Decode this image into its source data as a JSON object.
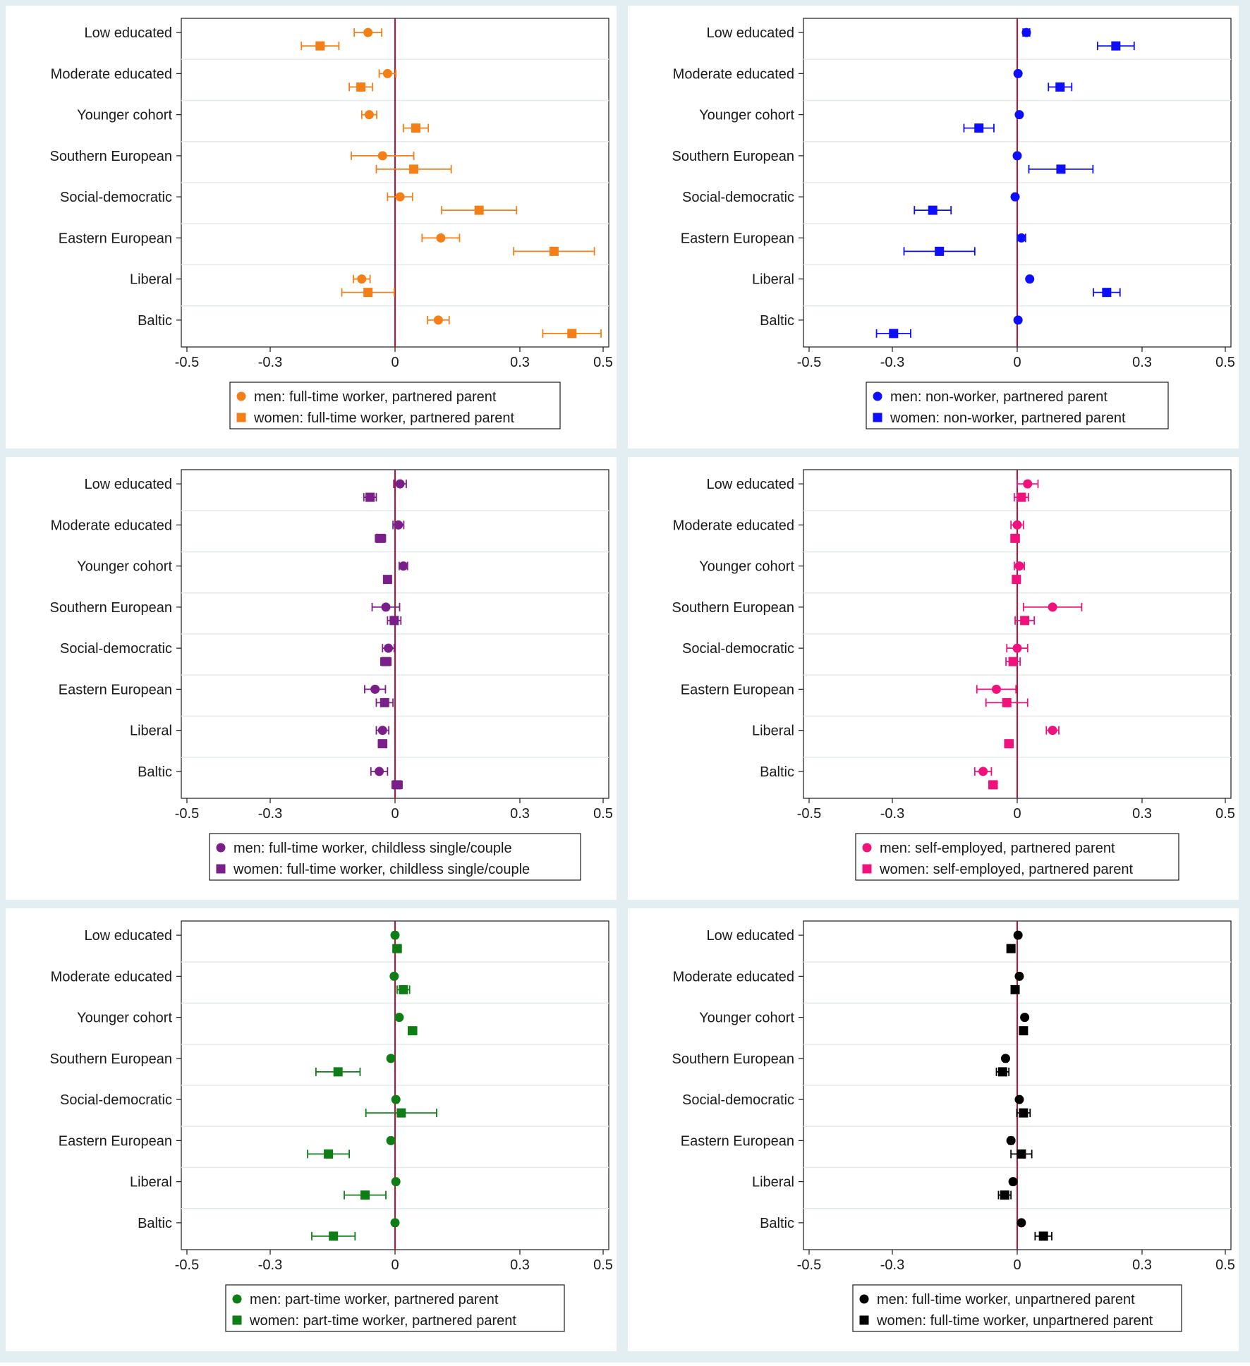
{
  "figure": {
    "background": "#e3eef3"
  },
  "categories": [
    "Low educated",
    "Moderate educated",
    "Younger cohort",
    "Southern European",
    "Social-democratic",
    "Eastern European",
    "Liberal",
    "Baltic"
  ],
  "chart_data": [
    {
      "type": "scatter",
      "style": "coefficient plot with 95% CI",
      "color": "#f57f17",
      "xlim": [
        -0.5,
        0.5
      ],
      "xticks": [
        "-0.5",
        "-0.3",
        "0",
        "0.3",
        "0.5"
      ],
      "series": [
        {
          "name": "men: full-time worker, partnered parent",
          "marker": "circle",
          "values": [
            -0.065,
            -0.018,
            -0.062,
            -0.03,
            0.012,
            0.11,
            -0.08,
            0.104
          ],
          "ci_low": [
            -0.098,
            -0.038,
            -0.08,
            -0.105,
            -0.018,
            0.065,
            -0.1,
            0.078
          ],
          "ci_high": [
            -0.032,
            0.002,
            -0.044,
            0.045,
            0.042,
            0.155,
            -0.06,
            0.13
          ]
        },
        {
          "name": "women: full-time worker, partnered parent",
          "marker": "square",
          "values": [
            -0.18,
            -0.082,
            0.05,
            0.045,
            0.202,
            0.382,
            -0.065,
            0.425
          ],
          "ci_low": [
            -0.225,
            -0.11,
            0.02,
            -0.045,
            0.112,
            0.285,
            -0.128,
            0.355
          ],
          "ci_high": [
            -0.135,
            -0.054,
            0.08,
            0.135,
            0.292,
            0.479,
            -0.002,
            0.495
          ]
        }
      ]
    },
    {
      "type": "scatter",
      "style": "coefficient plot with 95% CI",
      "color": "#0d0dff",
      "xlim": [
        -0.5,
        0.5
      ],
      "xticks": [
        "-0.5",
        "-0.3",
        "0",
        "0.3",
        "0.5"
      ],
      "series": [
        {
          "name": "men: non-worker, partnered parent",
          "marker": "circle",
          "values": [
            0.022,
            0.002,
            0.005,
            0.0,
            -0.005,
            0.01,
            0.03,
            0.002
          ],
          "ci_low": [
            0.014,
            -0.002,
            0.001,
            -0.004,
            -0.009,
            0.0,
            0.026,
            -0.002
          ],
          "ci_high": [
            0.03,
            0.006,
            0.009,
            0.004,
            -0.001,
            0.02,
            0.034,
            0.006
          ]
        },
        {
          "name": "women: non-worker, partnered parent",
          "marker": "square",
          "values": [
            0.237,
            0.103,
            -0.092,
            0.105,
            -0.203,
            -0.187,
            0.215,
            -0.297
          ],
          "ci_low": [
            0.193,
            0.075,
            -0.128,
            0.028,
            -0.247,
            -0.272,
            0.183,
            -0.338
          ],
          "ci_high": [
            0.281,
            0.131,
            -0.056,
            0.182,
            -0.159,
            -0.102,
            0.247,
            -0.256
          ]
        }
      ]
    },
    {
      "type": "scatter",
      "style": "coefficient plot with 95% CI",
      "color": "#7a1e8a",
      "xlim": [
        -0.5,
        0.5
      ],
      "xticks": [
        "-0.5",
        "-0.3",
        "0",
        "0.3",
        "0.5"
      ],
      "series": [
        {
          "name": "men: full-time worker, childless single/couple",
          "marker": "circle",
          "values": [
            0.012,
            0.008,
            0.02,
            -0.022,
            -0.016,
            -0.048,
            -0.03,
            -0.038
          ],
          "ci_low": [
            -0.003,
            -0.005,
            0.01,
            -0.055,
            -0.03,
            -0.073,
            -0.045,
            -0.058
          ],
          "ci_high": [
            0.027,
            0.021,
            0.03,
            0.011,
            -0.002,
            -0.023,
            -0.015,
            -0.018
          ]
        },
        {
          "name": "women: full-time worker, childless single/couple",
          "marker": "square",
          "values": [
            -0.06,
            -0.035,
            -0.018,
            -0.002,
            -0.022,
            -0.025,
            -0.03,
            0.005
          ],
          "ci_low": [
            -0.075,
            -0.047,
            -0.026,
            -0.018,
            -0.034,
            -0.045,
            -0.04,
            -0.007
          ],
          "ci_high": [
            -0.045,
            -0.023,
            -0.01,
            0.014,
            -0.01,
            -0.005,
            -0.02,
            0.017
          ]
        }
      ]
    },
    {
      "type": "scatter",
      "style": "coefficient plot with 95% CI",
      "color": "#f0127c",
      "xlim": [
        -0.5,
        0.5
      ],
      "xticks": [
        "-0.5",
        "-0.3",
        "0",
        "0.3",
        "0.5"
      ],
      "series": [
        {
          "name": "men: self-employed, partnered parent",
          "marker": "circle",
          "values": [
            0.025,
            0.0,
            0.005,
            0.085,
            0.0,
            -0.05,
            0.085,
            -0.082
          ],
          "ci_low": [
            0.0,
            -0.015,
            -0.007,
            0.015,
            -0.025,
            -0.097,
            0.07,
            -0.102
          ],
          "ci_high": [
            0.05,
            0.015,
            0.017,
            0.155,
            0.025,
            -0.003,
            0.1,
            -0.062
          ]
        },
        {
          "name": "women: self-employed, partnered parent",
          "marker": "square",
          "values": [
            0.01,
            -0.005,
            -0.002,
            0.018,
            -0.01,
            -0.025,
            -0.02,
            -0.058
          ],
          "ci_low": [
            -0.007,
            -0.015,
            -0.01,
            -0.005,
            -0.027,
            -0.075,
            -0.03,
            -0.068
          ],
          "ci_high": [
            0.027,
            0.005,
            0.006,
            0.041,
            0.007,
            0.025,
            -0.01,
            -0.048
          ]
        }
      ]
    },
    {
      "type": "scatter",
      "style": "coefficient plot with 95% CI",
      "color": "#0e7d16",
      "xlim": [
        -0.5,
        0.5
      ],
      "xticks": [
        "-0.5",
        "-0.3",
        "0",
        "0.3",
        "0.5"
      ],
      "series": [
        {
          "name": "men: part-time worker, partnered parent",
          "marker": "circle",
          "values": [
            0.0,
            -0.002,
            0.01,
            -0.01,
            0.002,
            -0.01,
            0.002,
            0.0
          ],
          "ci_low": [
            -0.004,
            -0.006,
            0.006,
            -0.014,
            -0.002,
            -0.014,
            -0.002,
            -0.004
          ],
          "ci_high": [
            0.004,
            0.002,
            0.014,
            -0.006,
            0.006,
            -0.006,
            0.006,
            0.004
          ]
        },
        {
          "name": "women: part-time worker, partnered parent",
          "marker": "square",
          "values": [
            0.005,
            0.02,
            0.042,
            -0.137,
            0.015,
            -0.16,
            -0.072,
            -0.148
          ],
          "ci_low": [
            -0.005,
            0.005,
            0.032,
            -0.19,
            -0.07,
            -0.21,
            -0.122,
            -0.2
          ],
          "ci_high": [
            0.015,
            0.035,
            0.052,
            -0.084,
            0.1,
            -0.11,
            -0.022,
            -0.096
          ]
        }
      ]
    },
    {
      "type": "scatter",
      "style": "coefficient plot with 95% CI",
      "color": "#000000",
      "xlim": [
        -0.5,
        0.5
      ],
      "xticks": [
        "-0.5",
        "-0.3",
        "0",
        "0.3",
        "0.5"
      ],
      "series": [
        {
          "name": "men: full-time worker, unpartnered parent",
          "marker": "circle",
          "values": [
            0.002,
            0.005,
            0.018,
            -0.028,
            0.005,
            -0.015,
            -0.01,
            0.01
          ],
          "ci_low": [
            -0.002,
            0.001,
            0.014,
            -0.032,
            0.001,
            -0.02,
            -0.014,
            0.006
          ],
          "ci_high": [
            0.006,
            0.009,
            0.022,
            -0.024,
            0.009,
            -0.01,
            -0.006,
            0.014
          ]
        },
        {
          "name": "women: full-time worker, unpartnered parent",
          "marker": "square",
          "values": [
            -0.015,
            -0.005,
            0.015,
            -0.035,
            0.015,
            0.01,
            -0.03,
            0.063
          ],
          "ci_low": [
            -0.019,
            -0.009,
            0.011,
            -0.05,
            -0.001,
            -0.015,
            -0.045,
            0.043
          ],
          "ci_high": [
            -0.011,
            -0.001,
            0.019,
            -0.02,
            0.031,
            0.035,
            -0.015,
            0.083
          ]
        }
      ]
    }
  ]
}
